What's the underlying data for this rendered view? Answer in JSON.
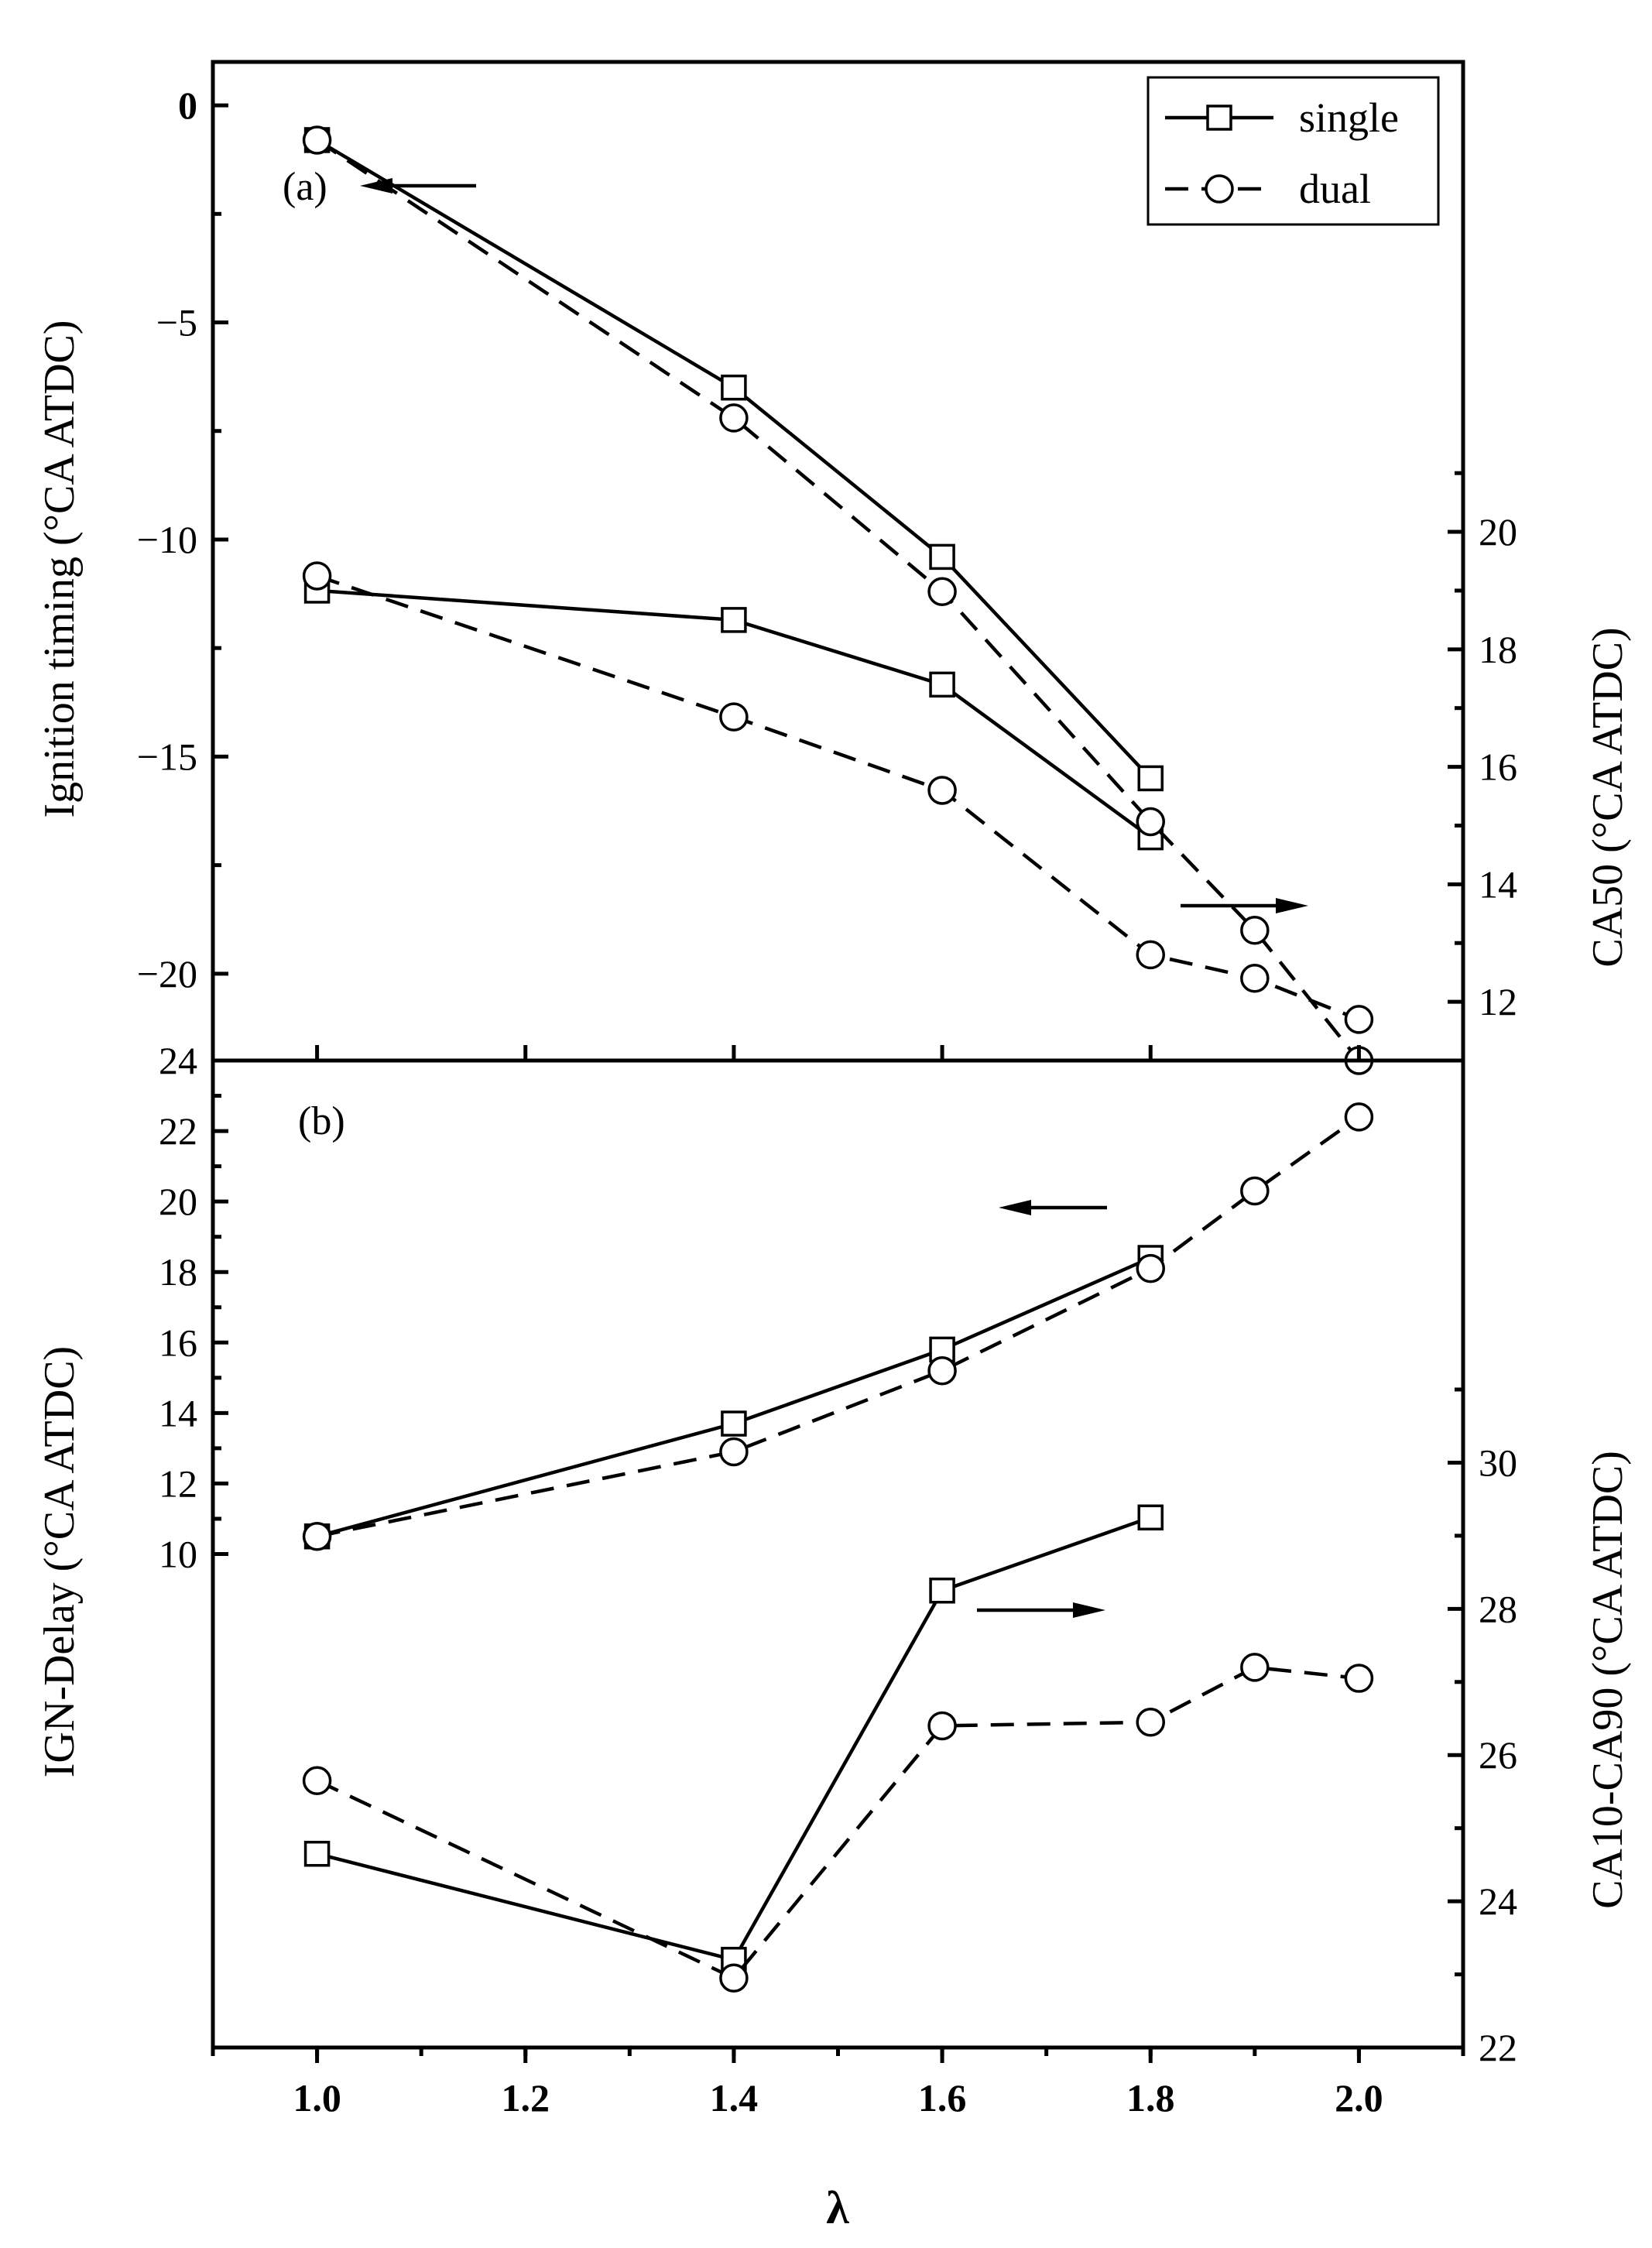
{
  "chart_data": [
    {
      "type": "line",
      "panel_label": "(a)",
      "x": [
        1.0,
        1.4,
        1.6,
        1.8,
        1.9,
        2.0
      ],
      "left_axis": {
        "label": "Ignition timing (°CA ATDC)",
        "ylim": [
          -22,
          1
        ],
        "ticks": [
          0,
          -5,
          -10,
          -15,
          -20
        ],
        "tick_labels": [
          "0",
          "−5",
          "−10",
          "−15",
          "−20"
        ],
        "series": [
          {
            "name": "single",
            "marker": "square",
            "linestyle": "solid",
            "x": [
              1.0,
              1.4,
              1.6,
              1.8
            ],
            "values": [
              -0.8,
              -6.5,
              -10.4,
              -15.5
            ]
          },
          {
            "name": "dual",
            "marker": "circle",
            "linestyle": "dashed",
            "x": [
              1.0,
              1.4,
              1.6,
              1.8,
              1.9,
              2.0
            ],
            "values": [
              -0.8,
              -7.2,
              -11.2,
              -16.5,
              -19.0,
              -22.0
            ]
          }
        ],
        "arrow_direction": "left"
      },
      "right_axis": {
        "label": "CA50 (°CA ATDC)",
        "ylim": [
          11,
          28
        ],
        "ticks": [
          12,
          14,
          16,
          18,
          20
        ],
        "tick_labels": [
          "12",
          "14",
          "16",
          "18",
          "20"
        ],
        "series": [
          {
            "name": "single",
            "marker": "square",
            "linestyle": "solid",
            "x": [
              1.0,
              1.4,
              1.6,
              1.8
            ],
            "values": [
              19.0,
              18.5,
              17.4,
              14.8
            ]
          },
          {
            "name": "dual",
            "marker": "circle",
            "linestyle": "dashed",
            "x": [
              1.0,
              1.4,
              1.6,
              1.8,
              1.9,
              2.0
            ],
            "values": [
              19.25,
              16.85,
              15.6,
              12.8,
              12.4,
              11.7
            ]
          }
        ],
        "arrow_direction": "right"
      },
      "legend": {
        "position": "top-right",
        "entries": [
          "single",
          "dual"
        ]
      }
    },
    {
      "type": "line",
      "panel_label": "(b)",
      "x": [
        1.0,
        1.4,
        1.6,
        1.8,
        1.9,
        2.0
      ],
      "left_axis": {
        "label": "IGN-Delay (°CA ATDC)",
        "ylim": [
          -4,
          24
        ],
        "ticks": [
          10,
          12,
          14,
          16,
          18,
          20,
          22,
          24
        ],
        "tick_labels": [
          "10",
          "12",
          "14",
          "16",
          "18",
          "20",
          "22",
          "24"
        ],
        "series": [
          {
            "name": "single",
            "marker": "square",
            "linestyle": "solid",
            "x": [
              1.0,
              1.4,
              1.6,
              1.8
            ],
            "values": [
              10.5,
              13.7,
              15.8,
              18.4
            ]
          },
          {
            "name": "dual",
            "marker": "circle",
            "linestyle": "dashed",
            "x": [
              1.0,
              1.4,
              1.6,
              1.8,
              1.9,
              2.0
            ],
            "values": [
              10.5,
              12.9,
              15.2,
              18.1,
              20.3,
              22.4
            ]
          }
        ],
        "arrow_direction": "left"
      },
      "right_axis": {
        "label": "CA10-CA90 (°CA ATDC)",
        "ylim": [
          22,
          35.5
        ],
        "ticks": [
          22,
          24,
          26,
          28,
          30
        ],
        "tick_labels": [
          "22",
          "24",
          "26",
          "28",
          "30"
        ],
        "series": [
          {
            "name": "single",
            "marker": "square",
            "linestyle": "solid",
            "x": [
              1.0,
              1.4,
              1.6,
              1.8
            ],
            "values": [
              24.65,
              23.2,
              28.25,
              29.25
            ]
          },
          {
            "name": "dual",
            "marker": "circle",
            "linestyle": "dashed",
            "x": [
              1.0,
              1.4,
              1.6,
              1.8,
              1.9,
              2.0
            ],
            "values": [
              25.65,
              22.95,
              26.4,
              26.45,
              27.2,
              27.05
            ]
          }
        ],
        "arrow_direction": "right"
      }
    }
  ],
  "x_axis": {
    "label": "λ",
    "xlim": [
      0.9,
      2.1
    ],
    "ticks": [
      1.0,
      1.2,
      1.4,
      1.6,
      1.8,
      2.0
    ],
    "tick_labels": [
      "1.0",
      "1.2",
      "1.4",
      "1.6",
      "1.8",
      "2.0"
    ]
  }
}
